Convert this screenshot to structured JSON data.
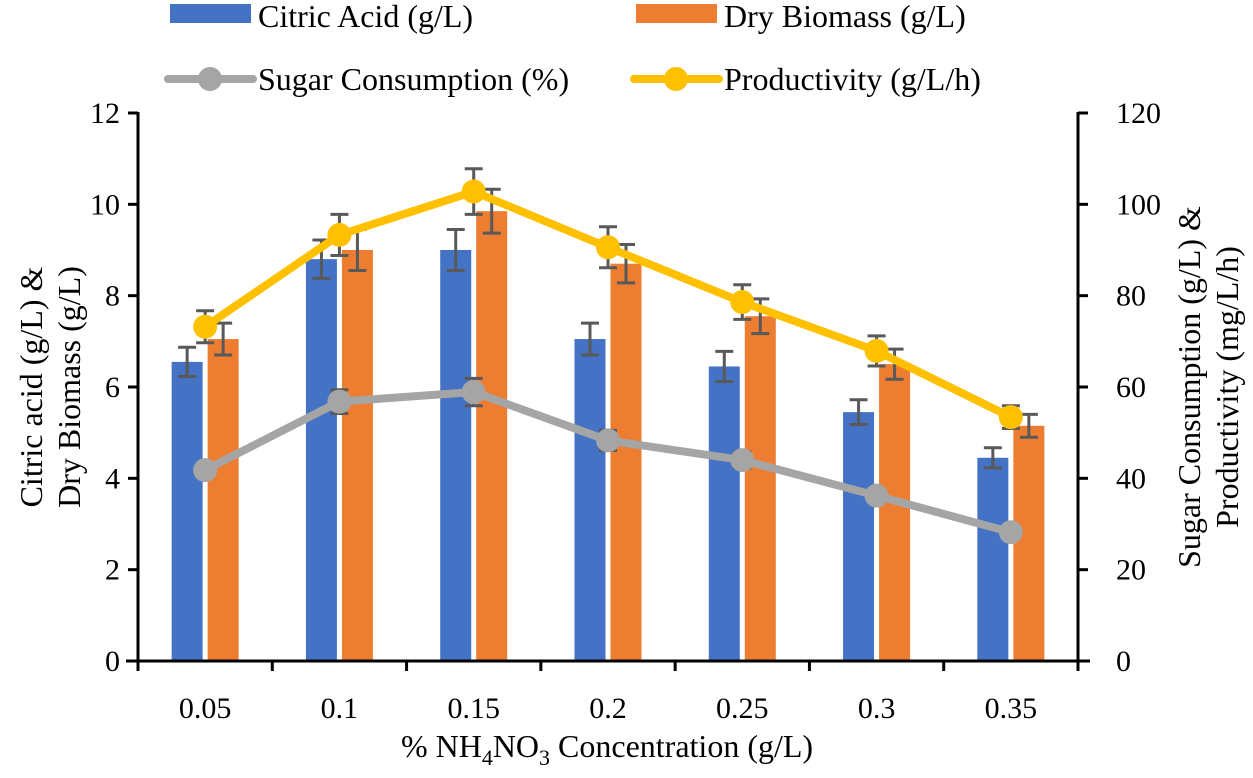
{
  "chart_data": {
    "type": "bar",
    "title": "",
    "xlabel_parts": {
      "prefix": "% NH",
      "sub1": "4",
      "mid": "NO",
      "sub2": "3",
      "suffix": " Concentration (g/L)"
    },
    "xlabel": "% NH4NO3 Concentration (g/L)",
    "ylabel_left": [
      "Citric acid (g/L) &",
      "Dry Biomass (g/L)"
    ],
    "ylabel_right": [
      "Sugar Consumption (g/L) &",
      "Productivity (mg/L/h)"
    ],
    "categories": [
      "0.05",
      "0.1",
      "0.15",
      "0.2",
      "0.25",
      "0.3",
      "0.35"
    ],
    "ylim_left": [
      0,
      12
    ],
    "yticks_left": [
      0,
      2,
      4,
      6,
      8,
      10,
      12
    ],
    "ylim_right": [
      0,
      120
    ],
    "yticks_right": [
      0,
      20,
      40,
      60,
      80,
      100,
      120
    ],
    "grid": false,
    "legend_position": "top",
    "series": [
      {
        "name": "Citric Acid (g/L)",
        "kind": "bar",
        "axis": "left",
        "color": "#4472C4",
        "values": [
          6.55,
          8.8,
          9.0,
          7.05,
          6.45,
          5.45,
          4.45
        ],
        "errors": [
          0.32,
          0.42,
          0.45,
          0.35,
          0.33,
          0.27,
          0.22
        ]
      },
      {
        "name": "Dry Biomass (g/L)",
        "kind": "bar",
        "axis": "left",
        "color": "#ED7D31",
        "values": [
          7.05,
          9.0,
          9.85,
          8.7,
          7.55,
          6.5,
          5.15
        ],
        "errors": [
          0.35,
          0.45,
          0.48,
          0.42,
          0.38,
          0.33,
          0.25
        ]
      },
      {
        "name": "Sugar Consumption (%)",
        "kind": "line",
        "axis": "right",
        "color": "#A5A5A5",
        "values": [
          41.8,
          56.8,
          58.9,
          48.3,
          44.0,
          36.2,
          28.2
        ],
        "errors": [
          1.0,
          2.6,
          3.0,
          2.2,
          1.8,
          1.2,
          0.8
        ]
      },
      {
        "name": "Productivity (g/L/h)",
        "kind": "line",
        "axis": "right",
        "color": "#FFC000",
        "values": [
          73.2,
          93.3,
          102.8,
          90.6,
          78.6,
          67.9,
          53.4
        ],
        "errors": [
          3.5,
          4.5,
          5.0,
          4.5,
          3.8,
          3.3,
          2.5
        ]
      }
    ],
    "error_bar_color": "#595959"
  }
}
